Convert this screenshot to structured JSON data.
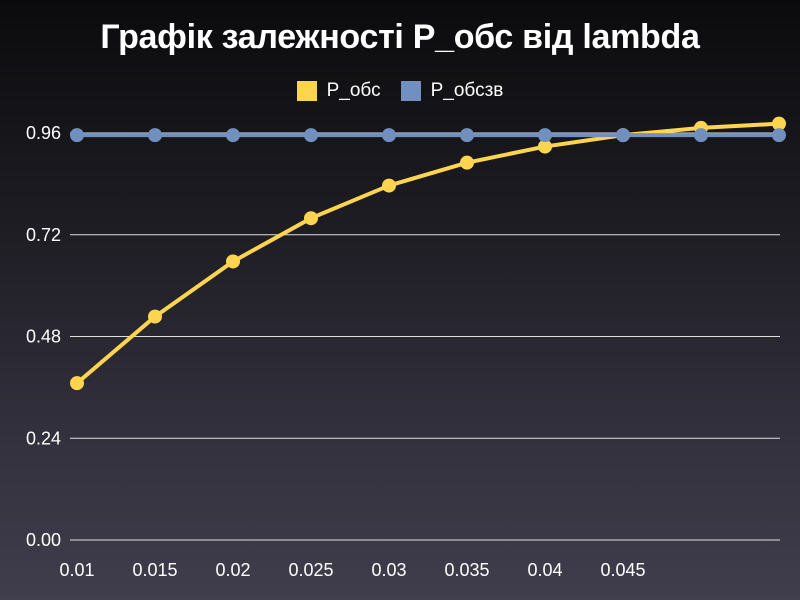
{
  "chart_data": {
    "type": "line",
    "title": "Графік залежності P_обс від lambda",
    "categories": [
      "0.01",
      "0.015",
      "0.02",
      "0.025",
      "0.03",
      "0.035",
      "0.04",
      "0.045",
      "",
      ""
    ],
    "series": [
      {
        "name": "P_обс",
        "color": "#ffd54f",
        "values": [
          0.37,
          0.527,
          0.657,
          0.759,
          0.836,
          0.89,
          0.928,
          0.955,
          0.972,
          0.982
        ]
      },
      {
        "name": "P_обсзв",
        "color": "#7290bf",
        "values": [
          0.955,
          0.955,
          0.955,
          0.955,
          0.955,
          0.955,
          0.955,
          0.955,
          0.955,
          0.955
        ]
      }
    ],
    "yticks": [
      "0.00",
      "0.24",
      "0.48",
      "0.72",
      "0.96"
    ],
    "ylim": [
      0,
      0.96
    ],
    "grid": true,
    "legend_position": "top"
  }
}
